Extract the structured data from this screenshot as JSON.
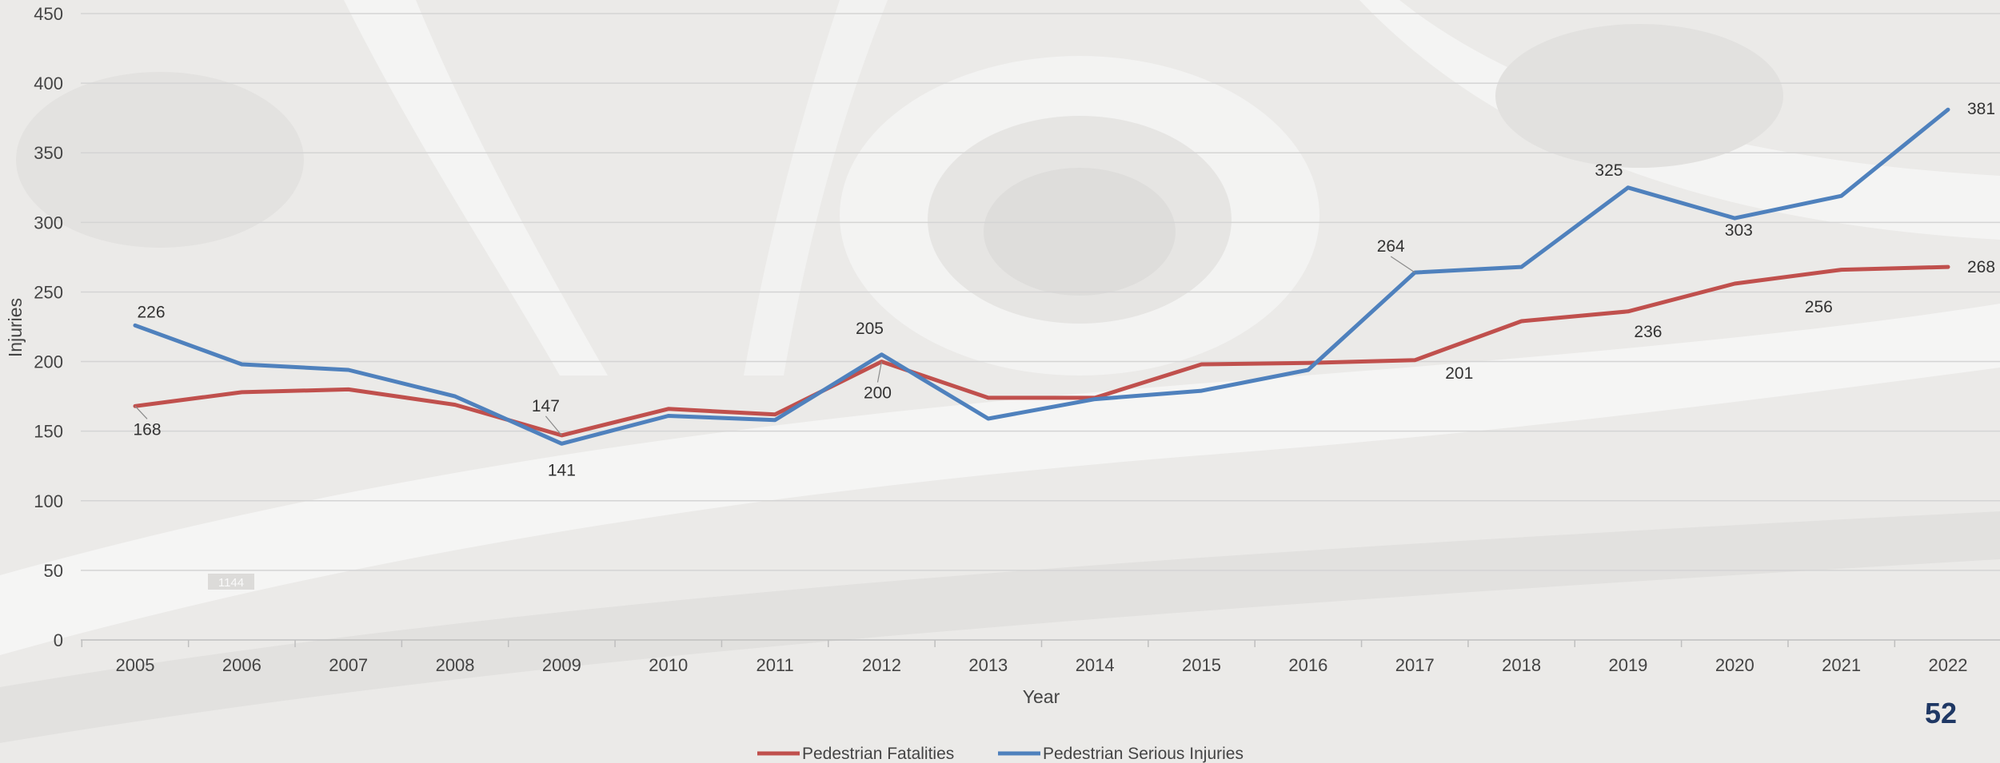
{
  "page": {
    "number": "52"
  },
  "colors": {
    "fatalities": "#c0504d",
    "serious_injuries": "#4f81bd",
    "grid": "#d4d4d4",
    "text": "#444444",
    "page_number": "#1f3864"
  },
  "background": {
    "description_icon": "aerial-photo-roundabout",
    "sign_text": "1144"
  },
  "chart_data": {
    "type": "line",
    "title": "",
    "xlabel": "Year",
    "ylabel": "Injuries",
    "ylim": [
      0,
      450
    ],
    "yticks": [
      0,
      50,
      100,
      150,
      200,
      250,
      300,
      350,
      400,
      450
    ],
    "grid": true,
    "legend_position": "bottom",
    "categories": [
      "2005",
      "2006",
      "2007",
      "2008",
      "2009",
      "2010",
      "2011",
      "2012",
      "2013",
      "2014",
      "2015",
      "2016",
      "2017",
      "2018",
      "2019",
      "2020",
      "2021",
      "2022"
    ],
    "series": [
      {
        "name": "Pedestrian Fatalities",
        "color": "#c0504d",
        "values": [
          168,
          178,
          180,
          169,
          147,
          166,
          162,
          200,
          174,
          174,
          198,
          199,
          201,
          229,
          236,
          256,
          266,
          268
        ],
        "labels": [
          {
            "index": 0,
            "text": "168"
          },
          {
            "index": 4,
            "text": "147"
          },
          {
            "index": 7,
            "text": "200"
          },
          {
            "index": 12,
            "text": "201"
          },
          {
            "index": 14,
            "text": "236"
          },
          {
            "index": 15,
            "text": "256"
          },
          {
            "index": 17,
            "text": "268"
          }
        ]
      },
      {
        "name": "Pedestrian Serious Injuries",
        "color": "#4f81bd",
        "values": [
          226,
          198,
          194,
          175,
          141,
          161,
          158,
          205,
          159,
          173,
          179,
          194,
          264,
          268,
          325,
          303,
          319,
          381
        ],
        "labels": [
          {
            "index": 0,
            "text": "226"
          },
          {
            "index": 4,
            "text": "141"
          },
          {
            "index": 7,
            "text": "205"
          },
          {
            "index": 12,
            "text": "264"
          },
          {
            "index": 14,
            "text": "325"
          },
          {
            "index": 15,
            "text": "303"
          },
          {
            "index": 17,
            "text": "381"
          }
        ]
      }
    ]
  }
}
